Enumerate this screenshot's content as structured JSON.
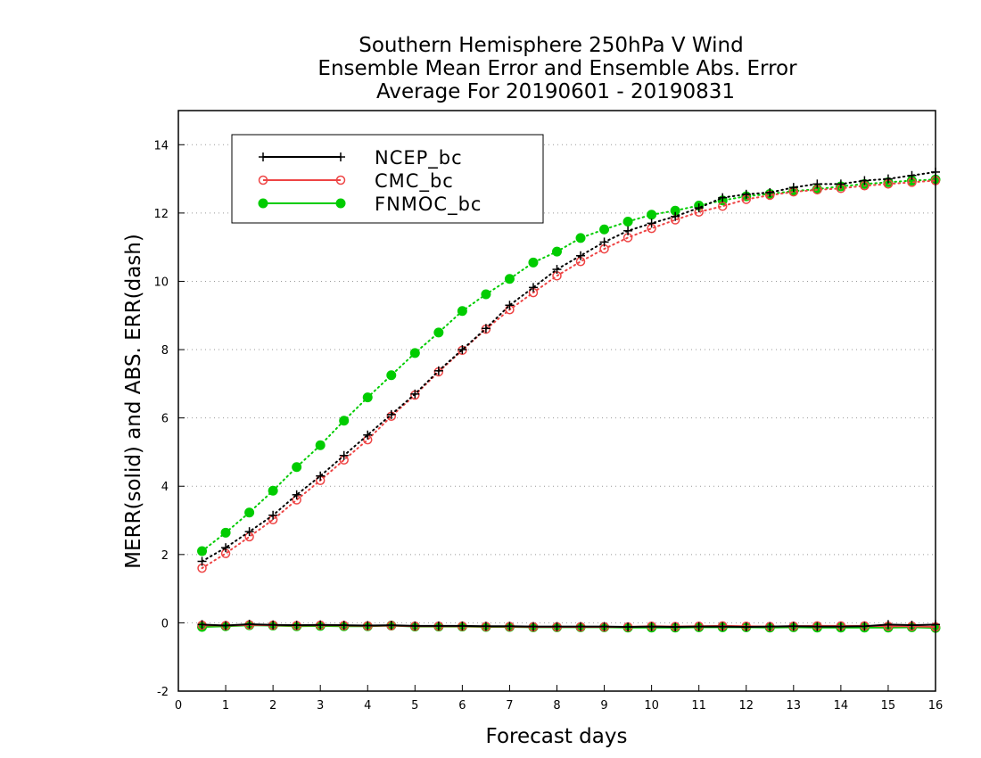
{
  "chart_data": {
    "type": "line",
    "title": [
      "Southern Hemisphere 250hPa V Wind",
      "Ensemble Mean Error and Ensemble Abs. Error",
      "Average For 20190601 - 20190831"
    ],
    "xlabel": "Forecast days",
    "ylabel": "MERR(solid) and ABS. ERR(dash)",
    "xlim": [
      0,
      16
    ],
    "ylim": [
      -2,
      15
    ],
    "xticks": [
      "0",
      "1",
      "2",
      "3",
      "4",
      "5",
      "6",
      "7",
      "8",
      "9",
      "10",
      "11",
      "12",
      "13",
      "14",
      "15",
      "16"
    ],
    "yticks": [
      "-2",
      "0",
      "2",
      "4",
      "6",
      "8",
      "10",
      "12",
      "14"
    ],
    "grid": "horizontal dotted",
    "legend_position": "top-left",
    "x": [
      0.5,
      1,
      1.5,
      2,
      2.5,
      3,
      3.5,
      4,
      4.5,
      5,
      5.5,
      6,
      6.5,
      7,
      7.5,
      8,
      8.5,
      9,
      9.5,
      10,
      10.5,
      11,
      11.5,
      12,
      12.5,
      13,
      13.5,
      14,
      14.5,
      15,
      15.5,
      16
    ],
    "series": [
      {
        "name": "NCEP_bc",
        "color": "#000000",
        "marker": "plus",
        "merr": [
          -0.05,
          -0.08,
          -0.04,
          -0.06,
          -0.07,
          -0.06,
          -0.07,
          -0.08,
          -0.07,
          -0.09,
          -0.09,
          -0.09,
          -0.1,
          -0.1,
          -0.11,
          -0.11,
          -0.11,
          -0.11,
          -0.12,
          -0.11,
          -0.12,
          -0.11,
          -0.11,
          -0.12,
          -0.11,
          -0.1,
          -0.11,
          -0.11,
          -0.1,
          -0.05,
          -0.07,
          -0.05
        ],
        "abs_err": [
          1.8,
          2.2,
          2.67,
          3.15,
          3.75,
          4.3,
          4.9,
          5.5,
          6.1,
          6.7,
          7.38,
          8.0,
          8.62,
          9.3,
          9.82,
          10.35,
          10.75,
          11.15,
          11.48,
          11.7,
          11.9,
          12.15,
          12.45,
          12.55,
          12.6,
          12.75,
          12.85,
          12.85,
          12.95,
          13.0,
          13.1,
          13.2
        ]
      },
      {
        "name": "CMC_bc",
        "color": "#ee4444",
        "marker": "open-circle",
        "merr": [
          -0.07,
          -0.08,
          -0.06,
          -0.07,
          -0.08,
          -0.07,
          -0.08,
          -0.09,
          -0.08,
          -0.1,
          -0.1,
          -0.1,
          -0.11,
          -0.11,
          -0.12,
          -0.12,
          -0.12,
          -0.12,
          -0.12,
          -0.1,
          -0.11,
          -0.1,
          -0.09,
          -0.1,
          -0.11,
          -0.1,
          -0.09,
          -0.09,
          -0.09,
          -0.1,
          -0.1,
          -0.12
        ],
        "abs_err": [
          1.6,
          2.03,
          2.52,
          3.02,
          3.6,
          4.17,
          4.77,
          5.36,
          6.05,
          6.67,
          7.35,
          7.98,
          8.6,
          9.17,
          9.67,
          10.16,
          10.58,
          10.95,
          11.28,
          11.55,
          11.8,
          12.03,
          12.2,
          12.4,
          12.52,
          12.62,
          12.68,
          12.72,
          12.8,
          12.85,
          12.9,
          12.95
        ]
      },
      {
        "name": "FNMOC_bc",
        "color": "#00cc00",
        "marker": "filled-circle",
        "merr": [
          -0.12,
          -0.1,
          -0.07,
          -0.08,
          -0.1,
          -0.09,
          -0.1,
          -0.1,
          -0.08,
          -0.11,
          -0.11,
          -0.11,
          -0.12,
          -0.12,
          -0.13,
          -0.13,
          -0.13,
          -0.13,
          -0.14,
          -0.14,
          -0.14,
          -0.13,
          -0.13,
          -0.13,
          -0.14,
          -0.13,
          -0.14,
          -0.14,
          -0.14,
          -0.14,
          -0.13,
          -0.15
        ],
        "abs_err": [
          2.1,
          2.64,
          3.23,
          3.87,
          4.56,
          5.2,
          5.92,
          6.6,
          7.25,
          7.9,
          8.5,
          9.13,
          9.62,
          10.07,
          10.55,
          10.87,
          11.27,
          11.52,
          11.75,
          11.95,
          12.07,
          12.22,
          12.37,
          12.49,
          12.56,
          12.64,
          12.7,
          12.78,
          12.85,
          12.9,
          12.95,
          12.98
        ]
      }
    ]
  }
}
